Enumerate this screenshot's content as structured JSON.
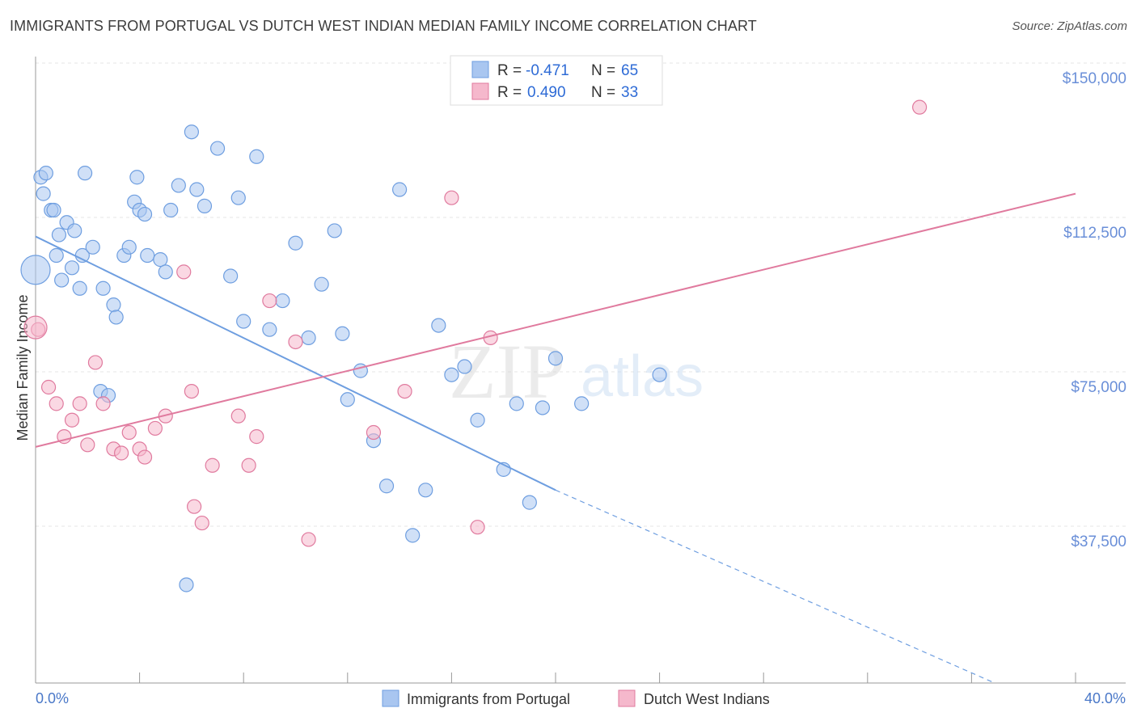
{
  "header": {
    "title": "IMMIGRANTS FROM PORTUGAL VS DUTCH WEST INDIAN MEDIAN FAMILY INCOME CORRELATION CHART",
    "source": "Source: ZipAtlas.com"
  },
  "watermark": {
    "zip": "ZIP",
    "atlas": "atlas"
  },
  "chart_data": {
    "type": "scatter",
    "title": "IMMIGRANTS FROM PORTUGAL VS DUTCH WEST INDIAN MEDIAN FAMILY INCOME CORRELATION CHART",
    "xlabel": "",
    "ylabel": "Median Family Income",
    "xlim": [
      0,
      40
    ],
    "ylim": [
      0,
      150000
    ],
    "x_tick_labels": {
      "min": "0.0%",
      "max": "40.0%"
    },
    "y_ticks": [
      {
        "value": 150000,
        "label": "$150,000"
      },
      {
        "value": 112500,
        "label": "$112,500"
      },
      {
        "value": 75000,
        "label": "$75,000"
      },
      {
        "value": 37500,
        "label": "$37,500"
      }
    ],
    "legend": {
      "r_label": "R =",
      "n_label": "N =",
      "entries": [
        {
          "r": "-0.471",
          "n": "65"
        },
        {
          "r": "0.490",
          "n": "33"
        }
      ]
    },
    "series": [
      {
        "name": "Immigrants from Portugal",
        "color": "#6e9ee0",
        "fill": "#a9c6f0",
        "trend": {
          "x0": 0,
          "y0": 111600,
          "x1": 20,
          "y1": 50000,
          "dash_x1": 40,
          "dash_y1": -11600
        },
        "points": [
          [
            0.2,
            126000
          ],
          [
            0.3,
            122000
          ],
          [
            0.4,
            127000
          ],
          [
            0.6,
            118000
          ],
          [
            0.7,
            118000
          ],
          [
            0.8,
            107000
          ],
          [
            0.9,
            112000
          ],
          [
            1.0,
            101000
          ],
          [
            1.2,
            115000
          ],
          [
            1.4,
            104000
          ],
          [
            1.5,
            113000
          ],
          [
            1.7,
            99000
          ],
          [
            1.8,
            107000
          ],
          [
            1.9,
            127000
          ],
          [
            2.2,
            109000
          ],
          [
            2.5,
            74000
          ],
          [
            2.6,
            99000
          ],
          [
            2.8,
            73000
          ],
          [
            3.0,
            95000
          ],
          [
            3.1,
            92000
          ],
          [
            3.4,
            107000
          ],
          [
            3.6,
            109000
          ],
          [
            3.8,
            120000
          ],
          [
            3.9,
            126000
          ],
          [
            4.0,
            118000
          ],
          [
            4.2,
            117000
          ],
          [
            4.3,
            107000
          ],
          [
            4.8,
            106000
          ],
          [
            5.0,
            103000
          ],
          [
            5.2,
            118000
          ],
          [
            5.5,
            124000
          ],
          [
            6.0,
            137000
          ],
          [
            6.2,
            123000
          ],
          [
            6.5,
            119000
          ],
          [
            7.0,
            133000
          ],
          [
            7.5,
            102000
          ],
          [
            7.8,
            121000
          ],
          [
            8.0,
            91000
          ],
          [
            8.5,
            131000
          ],
          [
            9.0,
            89000
          ],
          [
            9.5,
            96000
          ],
          [
            10.0,
            110000
          ],
          [
            10.5,
            87000
          ],
          [
            11.0,
            100000
          ],
          [
            11.5,
            113000
          ],
          [
            11.8,
            88000
          ],
          [
            12.0,
            72000
          ],
          [
            12.5,
            79000
          ],
          [
            13.0,
            62000
          ],
          [
            13.5,
            51000
          ],
          [
            14.0,
            123000
          ],
          [
            14.5,
            39000
          ],
          [
            15.0,
            50000
          ],
          [
            15.5,
            90000
          ],
          [
            16.0,
            78000
          ],
          [
            16.5,
            80000
          ],
          [
            17.0,
            67000
          ],
          [
            18.0,
            55000
          ],
          [
            18.5,
            71000
          ],
          [
            19.0,
            47000
          ],
          [
            19.5,
            70000
          ],
          [
            20.0,
            82000
          ],
          [
            21.0,
            71000
          ],
          [
            24.0,
            78000
          ],
          [
            5.8,
            27000
          ]
        ]
      },
      {
        "name": "Dutch West Indians",
        "color": "#e07a9e",
        "fill": "#f5b8cc",
        "trend": {
          "x0": 0,
          "y0": 60500,
          "x1": 40,
          "y1": 122000
        },
        "points": [
          [
            0.1,
            89000
          ],
          [
            0.5,
            75000
          ],
          [
            0.8,
            71000
          ],
          [
            1.1,
            63000
          ],
          [
            1.4,
            67000
          ],
          [
            1.7,
            71000
          ],
          [
            2.0,
            61000
          ],
          [
            2.3,
            81000
          ],
          [
            2.6,
            71000
          ],
          [
            3.0,
            60000
          ],
          [
            3.3,
            59000
          ],
          [
            3.6,
            64000
          ],
          [
            4.0,
            60000
          ],
          [
            4.2,
            58000
          ],
          [
            4.6,
            65000
          ],
          [
            5.0,
            68000
          ],
          [
            5.7,
            103000
          ],
          [
            6.0,
            74000
          ],
          [
            6.1,
            46000
          ],
          [
            6.4,
            42000
          ],
          [
            6.8,
            56000
          ],
          [
            7.8,
            68000
          ],
          [
            8.2,
            56000
          ],
          [
            8.5,
            63000
          ],
          [
            9.0,
            96000
          ],
          [
            10.0,
            86000
          ],
          [
            10.5,
            38000
          ],
          [
            13.0,
            64000
          ],
          [
            14.2,
            74000
          ],
          [
            16.0,
            121000
          ],
          [
            17.0,
            41000
          ],
          [
            17.5,
            87000
          ],
          [
            34.0,
            143000
          ]
        ]
      }
    ]
  }
}
